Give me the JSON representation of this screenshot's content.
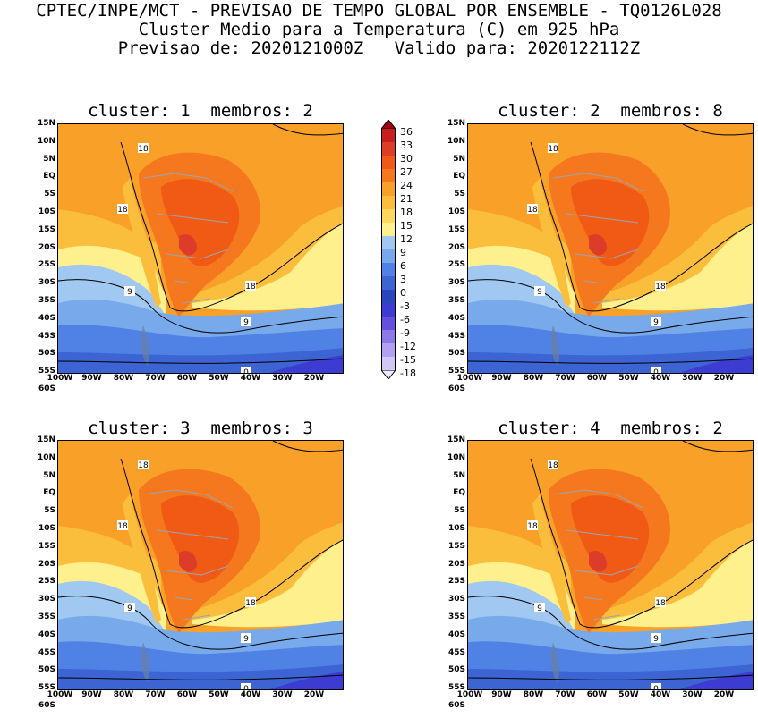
{
  "header": {
    "line1": "CPTEC/INPE/MCT - PREVISAO DE TEMPO GLOBAL POR ENSEMBLE - TQ0126L028",
    "line2": "Cluster Medio para a Temperatura (C) em 925 hPa",
    "line3": "Previsao de: 2020121000Z   Valido para: 2020122112Z"
  },
  "panels": [
    {
      "title": "cluster: 1  membros: 2",
      "labels": [
        "18",
        "18",
        "18",
        "9",
        "9",
        "0"
      ]
    },
    {
      "title": "cluster: 2  membros: 8",
      "labels": [
        "18",
        "18",
        "18",
        "9",
        "9",
        "0"
      ]
    },
    {
      "title": "cluster: 3  membros: 3",
      "labels": [
        "18",
        "18",
        "18",
        "9",
        "9",
        "0"
      ]
    },
    {
      "title": "cluster: 4  membros: 2",
      "labels": [
        "18",
        "18",
        "18",
        "9",
        "9",
        "0"
      ]
    }
  ],
  "lat_ticks": [
    "15N",
    "10N",
    "5N",
    "EQ",
    "5S",
    "10S",
    "15S",
    "20S",
    "25S",
    "30S",
    "35S",
    "40S",
    "45S",
    "50S",
    "55S",
    "60S"
  ],
  "lon_ticks": [
    "100W",
    "90W",
    "80W",
    "70W",
    "60W",
    "50W",
    "40W",
    "30W",
    "20W"
  ],
  "colorbar": {
    "labels": [
      "36",
      "33",
      "30",
      "27",
      "24",
      "21",
      "18",
      "15",
      "12",
      "9",
      "6",
      "3",
      "0",
      "-3",
      "-6",
      "-9",
      "-12",
      "-15",
      "-18"
    ],
    "colors": [
      "#b40016",
      "#c81e1e",
      "#dc3c28",
      "#f05a14",
      "#f5781e",
      "#f8a028",
      "#fbbe3c",
      "#fdd85a",
      "#fef08c",
      "#a0c8f0",
      "#78aaeb",
      "#5082e6",
      "#3c64d2",
      "#2846be",
      "#3c3cd2",
      "#6450dc",
      "#8c78e6",
      "#b4a0f0",
      "#d2c8f8",
      "#e6e0fc"
    ]
  }
}
